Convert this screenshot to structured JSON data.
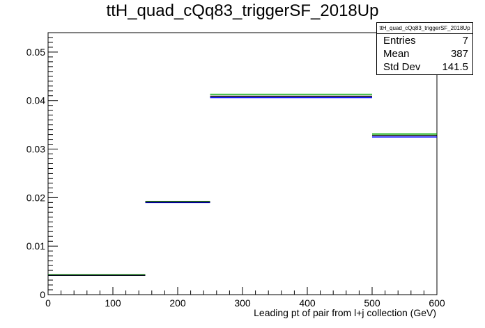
{
  "chart_data": {
    "type": "bar",
    "title": "ttH_quad_cQq83_triggerSF_2018Up",
    "xlabel": "Leading pt of pair from l+j collection (GeV)",
    "ylabel": "",
    "xlim": [
      0,
      600
    ],
    "ylim": [
      0,
      0.054
    ],
    "xticks": [
      0,
      100,
      200,
      300,
      400,
      500,
      600
    ],
    "xtick_labels": [
      "0",
      "100",
      "200",
      "300",
      "400",
      "500",
      "600"
    ],
    "yticks": [
      0,
      0.01,
      0.02,
      0.03,
      0.04,
      0.05
    ],
    "ytick_labels": [
      "0",
      "0.01",
      "0.02",
      "0.03",
      "0.04",
      "0.05"
    ],
    "bin_edges": [
      0,
      150,
      250,
      500,
      600
    ],
    "series": [
      {
        "values": [
          0.004,
          0.019,
          0.0406,
          0.0325
        ],
        "color": "#0000ff"
      },
      {
        "values": [
          0.0041,
          0.0192,
          0.0413,
          0.0331
        ],
        "color": "#00aa00"
      },
      {
        "values": [
          0.004,
          0.0191,
          0.0409,
          0.0328
        ],
        "color": "#000000"
      }
    ],
    "grid": false,
    "legend": "none",
    "stats": {
      "title": "ttH_quad_cQq83_triggerSF_2018Up",
      "entries_label": "Entries",
      "entries": "7",
      "mean_label": "Mean",
      "mean": "387",
      "stddev_label": "Std Dev",
      "stddev": "141.5"
    }
  }
}
